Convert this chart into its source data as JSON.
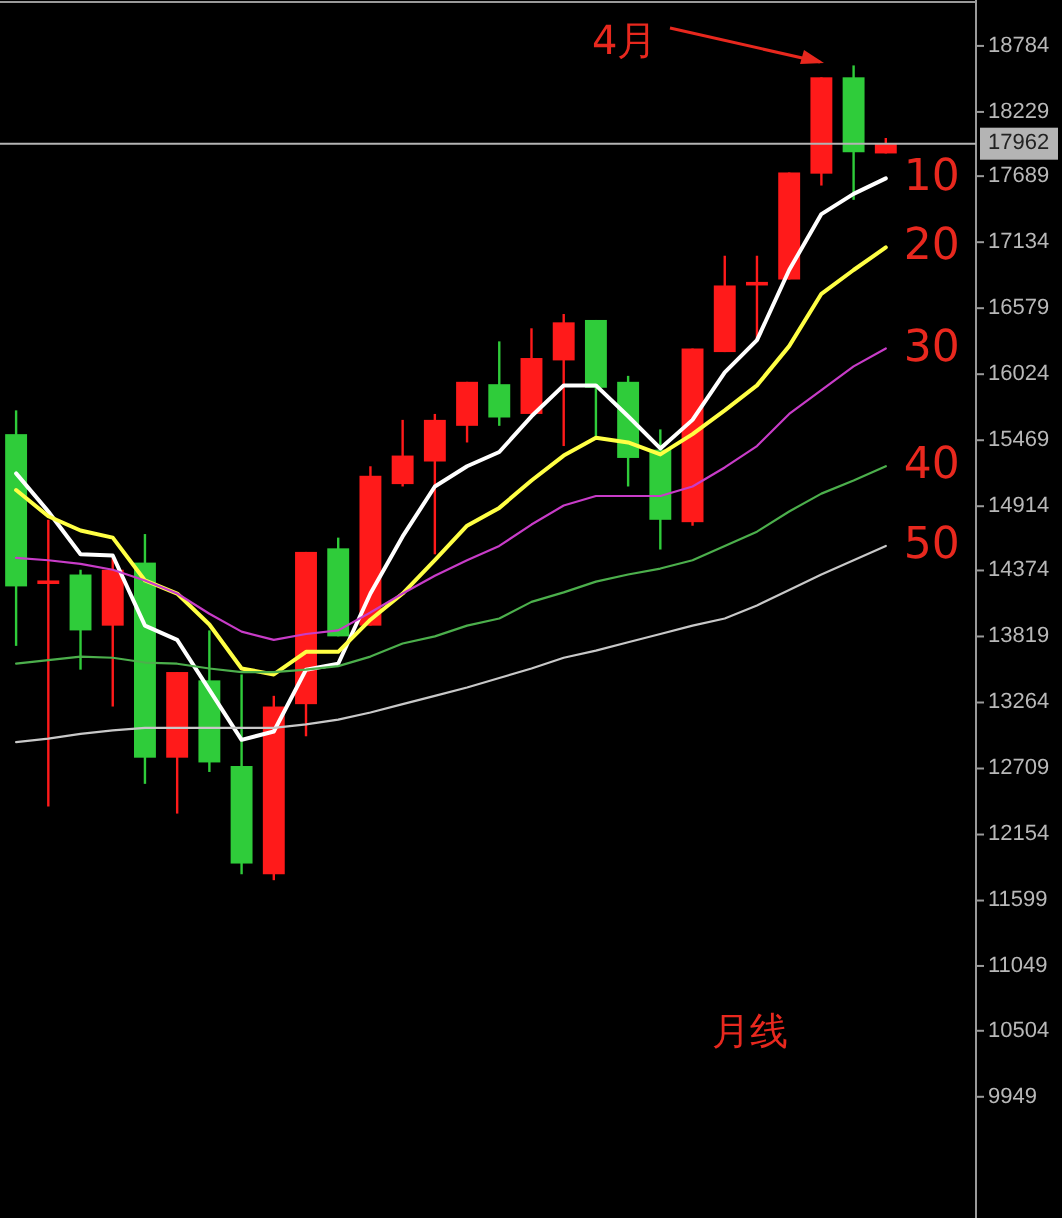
{
  "chart_data": {
    "type": "candlestick",
    "categories": [
      null,
      null,
      null,
      null,
      null,
      null,
      null,
      null,
      null,
      null,
      null,
      null,
      null,
      null,
      null,
      null,
      null,
      null,
      null,
      null,
      null,
      null,
      null,
      null,
      null,
      null,
      null,
      null
    ],
    "ohlc": [
      [
        15520,
        15720,
        13740,
        14240
      ],
      [
        14260,
        14800,
        12390,
        14290
      ],
      [
        14340,
        14380,
        13540,
        13870
      ],
      [
        13910,
        14510,
        13230,
        14380
      ],
      [
        14440,
        14680,
        12580,
        12800
      ],
      [
        12800,
        13520,
        12330,
        13520
      ],
      [
        13450,
        13870,
        12680,
        12760
      ],
      [
        12730,
        13500,
        11820,
        11910
      ],
      [
        11820,
        13320,
        11770,
        13230
      ],
      [
        13250,
        14530,
        12980,
        14530
      ],
      [
        14560,
        14650,
        13820,
        13820
      ],
      [
        13910,
        15250,
        13910,
        15170
      ],
      [
        15100,
        15640,
        15080,
        15340
      ],
      [
        15290,
        15690,
        14510,
        15640
      ],
      [
        15590,
        15960,
        15450,
        15960
      ],
      [
        15940,
        16300,
        15590,
        15660
      ],
      [
        15690,
        16410,
        15690,
        16160
      ],
      [
        16140,
        16530,
        15420,
        16460
      ],
      [
        16480,
        16480,
        15500,
        15910
      ],
      [
        15960,
        16010,
        15080,
        15320
      ],
      [
        15390,
        15560,
        14550,
        14800
      ],
      [
        14780,
        16240,
        14750,
        16240
      ],
      [
        16210,
        17020,
        16210,
        16770
      ],
      [
        16770,
        17020,
        16310,
        16800
      ],
      [
        16820,
        17720,
        16820,
        17720
      ],
      [
        17710,
        18520,
        17610,
        18520
      ],
      [
        18520,
        18620,
        17490,
        17890
      ],
      [
        17880,
        18010,
        17880,
        17960
      ]
    ],
    "colors": [
      "#2fcc3a",
      "#ff1a1a",
      "#2fcc3a",
      "#ff1a1a",
      "#2fcc3a",
      "#ff1a1a",
      "#2fcc3a",
      "#2fcc3a",
      "#ff1a1a",
      "#ff1a1a",
      "#2fcc3a",
      "#ff1a1a",
      "#ff1a1a",
      "#ff1a1a",
      "#ff1a1a",
      "#2fcc3a",
      "#ff1a1a",
      "#ff1a1a",
      "#2fcc3a",
      "#2fcc3a",
      "#2fcc3a",
      "#ff1a1a",
      "#ff1a1a",
      "#ff1a1a",
      "#ff1a1a",
      "#ff1a1a",
      "#2fcc3a",
      "#ff1a1a"
    ],
    "series": [
      {
        "type": "line",
        "name": "10",
        "color": "#ffffff",
        "values": [
          15190,
          14870,
          14510,
          14500,
          13910,
          13790,
          13370,
          12950,
          13020,
          13540,
          13590,
          14180,
          14660,
          15080,
          15250,
          15370,
          15670,
          15930,
          15930,
          15670,
          15400,
          15640,
          16040,
          16310,
          16900,
          17370,
          17540,
          17670
        ]
      },
      {
        "type": "line",
        "name": "20",
        "color": "#ffff44",
        "values": [
          15050,
          14830,
          14710,
          14650,
          14290,
          14180,
          13920,
          13550,
          13500,
          13690,
          13690,
          13960,
          14180,
          14460,
          14750,
          14900,
          15130,
          15340,
          15490,
          15450,
          15350,
          15520,
          15720,
          15930,
          16260,
          16700,
          16900,
          17090
        ]
      },
      {
        "type": "line",
        "name": "30",
        "color": "#c83cc8",
        "values": [
          14480,
          14460,
          14430,
          14380,
          14290,
          14180,
          14010,
          13860,
          13790,
          13840,
          13870,
          14020,
          14180,
          14330,
          14460,
          14580,
          14760,
          14920,
          15000,
          15000,
          15000,
          15080,
          15240,
          15420,
          15690,
          15890,
          16090,
          16240
        ]
      },
      {
        "type": "line",
        "name": "40",
        "color": "#4caf4c",
        "values": [
          13590,
          13620,
          13650,
          13640,
          13600,
          13590,
          13550,
          13520,
          13520,
          13540,
          13570,
          13650,
          13760,
          13820,
          13910,
          13970,
          14110,
          14190,
          14280,
          14340,
          14390,
          14460,
          14580,
          14700,
          14870,
          15020,
          15130,
          15250
        ]
      },
      {
        "type": "line",
        "name": "50",
        "color": "#c8c8c8",
        "values": [
          12930,
          12960,
          13000,
          13030,
          13050,
          13050,
          13050,
          13050,
          13050,
          13080,
          13120,
          13180,
          13250,
          13320,
          13390,
          13470,
          13550,
          13640,
          13700,
          13770,
          13840,
          13910,
          13970,
          14080,
          14210,
          14340,
          14460,
          14580
        ]
      }
    ],
    "ylim": [
      8930,
      19170
    ],
    "yticks": [
      9949,
      10504,
      11049,
      11599,
      12154,
      12709,
      13264,
      13819,
      14374,
      14914,
      15469,
      16024,
      16579,
      17134,
      17689,
      18229,
      18784
    ],
    "tick_labels": "y",
    "ref_lines": [
      {
        "axis": "y",
        "value": 17962,
        "label": "17962",
        "color": "#b4b4b4"
      }
    ],
    "annotations": [
      "4月",
      "月线"
    ]
  }
}
